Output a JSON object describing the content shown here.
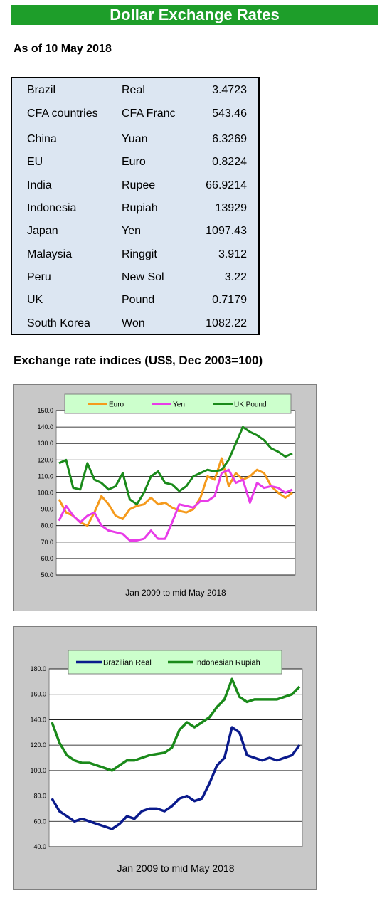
{
  "banner": {
    "title": "Dollar Exchange Rates"
  },
  "as_of": "As of 10 May 2018",
  "rates": [
    {
      "country": "Brazil",
      "currency": "Real",
      "rate": "3.4723"
    },
    {
      "country": "CFA countries",
      "currency": "CFA Franc",
      "rate": "543.46"
    },
    {
      "country": "China",
      "currency": "Yuan",
      "rate": "6.3269"
    },
    {
      "country": "EU",
      "currency": "Euro",
      "rate": "0.8224"
    },
    {
      "country": "India",
      "currency": "Rupee",
      "rate": "66.9214"
    },
    {
      "country": "Indonesia",
      "currency": "Rupiah",
      "rate": "13929"
    },
    {
      "country": "Japan",
      "currency": "Yen",
      "rate": "1097.43"
    },
    {
      "country": "Malaysia",
      "currency": "Ringgit",
      "rate": "3.912"
    },
    {
      "country": "Peru",
      "currency": "New Sol",
      "rate": "3.22"
    },
    {
      "country": "UK",
      "currency": "Pound",
      "rate": "0.7179"
    },
    {
      "country": "South Korea",
      "currency": "Won",
      "rate": "1082.22"
    }
  ],
  "indices_title": "Exchange rate indices (US$, Dec 2003=100)",
  "chart_data": [
    {
      "type": "line",
      "xlabel": "Jan 2009  to mid May 2018",
      "ylim": [
        50,
        150
      ],
      "yticks": [
        "50.0",
        "60.0",
        "70.0",
        "80.0",
        "90.0",
        "100.0",
        "110.0",
        "120.0",
        "130.0",
        "140.0",
        "150.0"
      ],
      "grid": true,
      "legend": "top",
      "x_range": [
        "Jan 2009",
        "mid May 2018"
      ],
      "series": [
        {
          "name": "Euro",
          "color": "#f59a1c",
          "values": [
            96,
            88,
            86,
            82,
            80,
            88,
            98,
            93,
            86,
            84,
            90,
            92,
            93,
            97,
            93,
            94,
            91,
            89,
            88,
            90,
            97,
            110,
            108,
            121,
            104,
            112,
            108,
            110,
            114,
            112,
            104,
            100,
            97,
            100
          ]
        },
        {
          "name": "Yen",
          "color": "#e83ce8",
          "values": [
            83,
            92,
            86,
            82,
            86,
            88,
            80,
            77,
            76,
            75,
            71,
            71,
            72,
            77,
            72,
            72,
            82,
            93,
            92,
            91,
            95,
            95,
            98,
            112,
            114,
            106,
            108,
            94,
            106,
            103,
            104,
            103,
            100,
            102
          ]
        },
        {
          "name": "UK Pound",
          "color": "#1a8a1a",
          "values": [
            118,
            120,
            103,
            102,
            118,
            108,
            106,
            102,
            104,
            112,
            96,
            93,
            100,
            110,
            113,
            106,
            105,
            101,
            104,
            110,
            112,
            114,
            113,
            114,
            120,
            130,
            140,
            137,
            135,
            132,
            127,
            125,
            122,
            124
          ]
        }
      ]
    },
    {
      "type": "line",
      "xlabel": "Jan 2009  to mid May 2018",
      "ylim": [
        40,
        180
      ],
      "yticks": [
        "40.0",
        "60.0",
        "80.0",
        "100.0",
        "120.0",
        "140.0",
        "160.0",
        "180.0"
      ],
      "grid": true,
      "legend": "top",
      "x_range": [
        "Jan 2009",
        "mid May 2018"
      ],
      "series": [
        {
          "name": "Brazilian Real",
          "color": "#0a1a8c",
          "values": [
            78,
            68,
            64,
            60,
            62,
            60,
            58,
            56,
            54,
            58,
            64,
            62,
            68,
            70,
            70,
            68,
            72,
            78,
            80,
            76,
            78,
            90,
            104,
            110,
            134,
            130,
            112,
            110,
            108,
            110,
            108,
            110,
            112,
            120
          ]
        },
        {
          "name": "Indonesian Rupiah",
          "color": "#1a8a1a",
          "values": [
            138,
            122,
            112,
            108,
            106,
            106,
            104,
            102,
            100,
            104,
            108,
            108,
            110,
            112,
            113,
            114,
            118,
            132,
            138,
            134,
            138,
            142,
            150,
            156,
            172,
            158,
            154,
            156,
            156,
            156,
            156,
            158,
            160,
            166
          ]
        }
      ]
    }
  ]
}
